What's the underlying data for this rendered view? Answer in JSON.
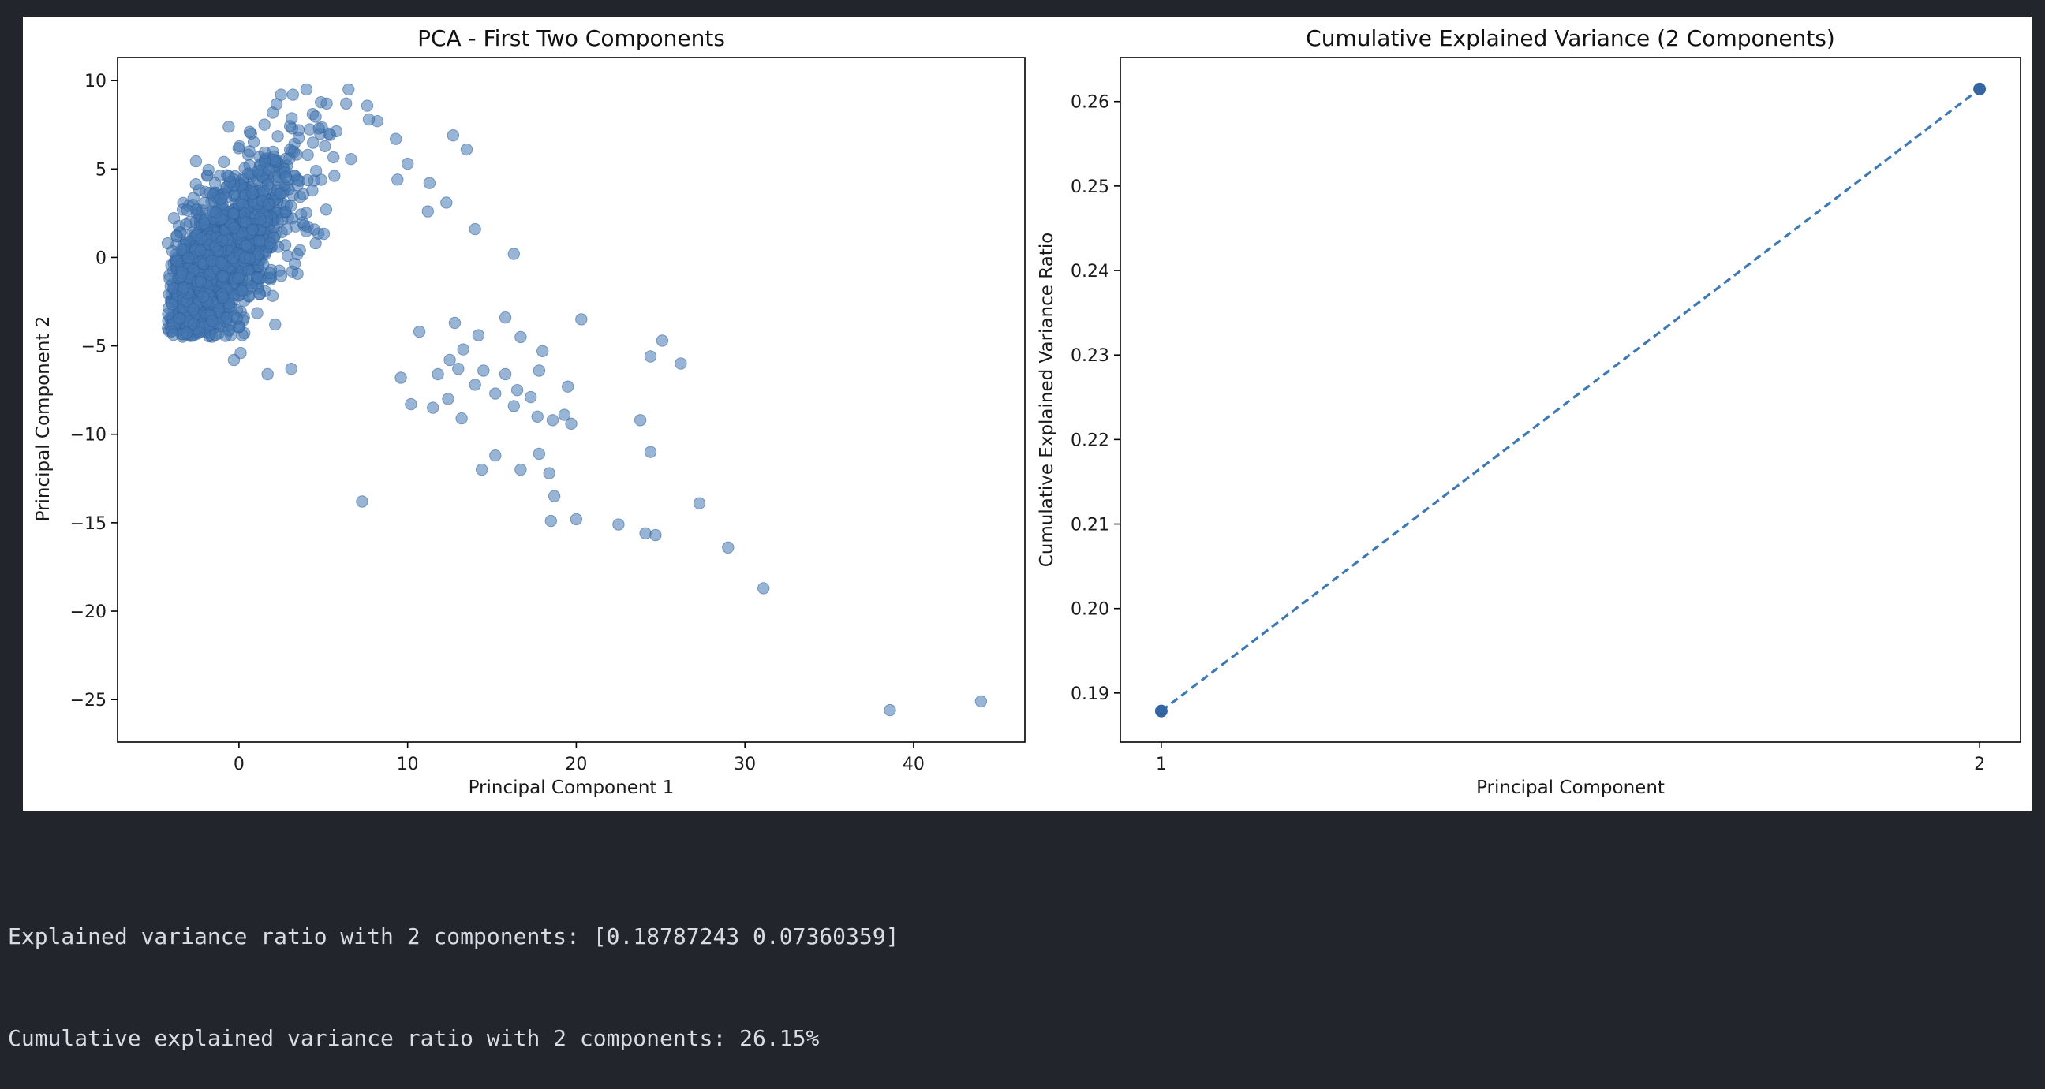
{
  "chart_data": [
    {
      "type": "scatter",
      "title": "PCA - First Two Components",
      "xlabel": "Principal Component 1",
      "ylabel": "Principal Component 2",
      "xlim": [
        -7.2,
        46.6
      ],
      "ylim": [
        -27.4,
        11.3
      ],
      "xticks": [
        0,
        10,
        20,
        30,
        40
      ],
      "yticks": [
        10,
        5,
        0,
        -5,
        -10,
        -15,
        -20,
        -25
      ],
      "xtick_labels": [
        "0",
        "10",
        "20",
        "30",
        "40"
      ],
      "ytick_labels": [
        "10",
        "5",
        "0",
        "−5",
        "−10",
        "−15",
        "−20",
        "−25"
      ],
      "color": "#4678b2",
      "alpha": 0.55,
      "dense_cluster": {
        "approx_count": 1500,
        "x_range": [
          -5,
          10
        ],
        "y_range": [
          -4,
          8
        ]
      },
      "points": [
        [
          6.5,
          9.5
        ],
        [
          4,
          9.5
        ],
        [
          2.5,
          9.2
        ],
        [
          12.7,
          6.9
        ],
        [
          13.5,
          6.1
        ],
        [
          9.3,
          6.7
        ],
        [
          10,
          5.3
        ],
        [
          12.3,
          3.1
        ],
        [
          11.2,
          2.6
        ],
        [
          16.3,
          0.2
        ],
        [
          14,
          1.6
        ],
        [
          15.8,
          -3.4
        ],
        [
          20.3,
          -3.5
        ],
        [
          16.7,
          -4.5
        ],
        [
          18,
          -5.3
        ],
        [
          14.2,
          -4.4
        ],
        [
          13.3,
          -5.2
        ],
        [
          12.5,
          -5.8
        ],
        [
          13,
          -6.3
        ],
        [
          14.5,
          -6.4
        ],
        [
          15.8,
          -6.6
        ],
        [
          16.5,
          -7.5
        ],
        [
          17.3,
          -7.9
        ],
        [
          15.2,
          -7.7
        ],
        [
          14,
          -7.2
        ],
        [
          13.2,
          -9.1
        ],
        [
          12.4,
          -8
        ],
        [
          11.5,
          -8.5
        ],
        [
          10.2,
          -8.3
        ],
        [
          17.7,
          -9
        ],
        [
          18.6,
          -9.2
        ],
        [
          19.3,
          -8.9
        ],
        [
          19.7,
          -9.4
        ],
        [
          19.5,
          -7.3
        ],
        [
          17.8,
          -6.4
        ],
        [
          16.3,
          -8.4
        ],
        [
          15.2,
          -11.2
        ],
        [
          14.4,
          -12
        ],
        [
          16.7,
          -12
        ],
        [
          17.8,
          -11.1
        ],
        [
          18.4,
          -12.2
        ],
        [
          18.7,
          -13.5
        ],
        [
          18.5,
          -14.9
        ],
        [
          20,
          -14.8
        ],
        [
          22.5,
          -15.1
        ],
        [
          24.1,
          -15.6
        ],
        [
          24.7,
          -15.7
        ],
        [
          23.8,
          -9.2
        ],
        [
          24.4,
          -11
        ],
        [
          24.4,
          -5.6
        ],
        [
          25.1,
          -4.7
        ],
        [
          26.2,
          -6
        ],
        [
          27.3,
          -13.9
        ],
        [
          29,
          -16.4
        ],
        [
          31.1,
          -18.7
        ],
        [
          7.3,
          -13.8
        ],
        [
          38.6,
          -25.6
        ],
        [
          44,
          -25.1
        ],
        [
          -0.3,
          -5.8
        ],
        [
          0.1,
          -5.4
        ],
        [
          1.7,
          -6.6
        ],
        [
          3.1,
          -6.3
        ],
        [
          9.6,
          -6.8
        ],
        [
          11.8,
          -6.6
        ],
        [
          10.7,
          -4.2
        ],
        [
          12.8,
          -3.7
        ],
        [
          11.3,
          4.2
        ],
        [
          9.4,
          4.4
        ],
        [
          8.2,
          7.7
        ],
        [
          7.7,
          7.8
        ],
        [
          5.2,
          8.7
        ],
        [
          3.2,
          9.2
        ]
      ]
    },
    {
      "type": "line",
      "title": "Cumulative Explained Variance (2 Components)",
      "xlabel": "Principal Component",
      "ylabel": "Cumulative Explained Variance Ratio",
      "x": [
        1,
        2
      ],
      "y": [
        0.18787243,
        0.26147602
      ],
      "xlim": [
        0.95,
        2.05
      ],
      "ylim": [
        0.1842,
        0.2652
      ],
      "xticks": [
        1,
        2
      ],
      "yticks": [
        0.19,
        0.2,
        0.21,
        0.22,
        0.23,
        0.24,
        0.25,
        0.26
      ],
      "xtick_labels": [
        "1",
        "2"
      ],
      "ytick_labels": [
        "0.19",
        "0.20",
        "0.21",
        "0.22",
        "0.23",
        "0.24",
        "0.25",
        "0.26"
      ],
      "line_style": "dashed",
      "marker": "o",
      "color": "#3d79b4"
    }
  ],
  "console": {
    "line1": "Explained variance ratio with 2 components: [0.18787243 0.07360359]",
    "line2": "Cumulative explained variance ratio with 2 components: 26.15%"
  }
}
